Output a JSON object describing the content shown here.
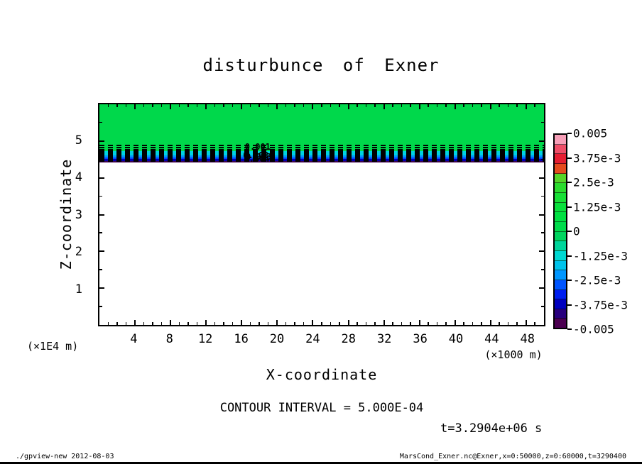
{
  "title": "disturbunce of Exner",
  "axes": {
    "x_label": "X-coordinate",
    "x_unit": "(×1000 m)",
    "y_label": "Z-coordinate",
    "y_unit": "(×1E4 m)"
  },
  "annotations": {
    "contour_interval": "CONTOUR INTERVAL = 5.000E-04",
    "time": "t=3.2904e+06 s"
  },
  "footer": {
    "left": "./gpview-new  2012-08-03",
    "right": "MarsCond_Exner.nc@Exner,x=0:50000,z=0:60000,t=3290400"
  },
  "colorbar": {
    "labels": [
      "0.005",
      "3.75e-3",
      "2.5e-3",
      "1.25e-3",
      "0",
      "-1.25e-3",
      "-2.5e-3",
      "-3.75e-3",
      "-0.005"
    ],
    "segment_colors": [
      "#f79fb8",
      "#ef4e68",
      "#e61e32",
      "#e64b1e",
      "#55d528",
      "#2bdc2e",
      "#18e036",
      "#09e13c",
      "#00e142",
      "#00dc4b",
      "#00d55f",
      "#00d59b",
      "#00d8d2",
      "#00c3eb",
      "#0096ff",
      "#0055ff",
      "#001ef0",
      "#0000be",
      "#28007d",
      "#4b0050"
    ]
  },
  "chart_data": {
    "type": "heatmap",
    "title": "disturbunce of Exner",
    "xlabel": "X-coordinate",
    "x_unit": "×1000 m",
    "ylabel": "Z-coordinate",
    "y_unit": "×1E4 m",
    "xlim": [
      0,
      50
    ],
    "ylim": [
      0,
      6
    ],
    "x_ticks": [
      4,
      8,
      12,
      16,
      20,
      24,
      28,
      32,
      36,
      40,
      44,
      48
    ],
    "y_ticks": [
      1,
      2,
      3,
      4,
      5
    ],
    "contour_interval": 0.0005,
    "colorbar_levels": [
      0.005,
      0.00375,
      0.0025,
      0.00125,
      0,
      -0.00125,
      -0.0025,
      -0.00375,
      -0.005
    ],
    "time_seconds": 3290400,
    "bands": [
      {
        "z_from": 4.72,
        "z_to": 6.0,
        "value": "~0",
        "color": "#00d84b"
      },
      {
        "z_from": 4.62,
        "z_to": 4.72,
        "value": "-0.00125",
        "color": "#00d2e1"
      },
      {
        "z_from": 4.56,
        "z_to": 4.62,
        "value": "-0.002",
        "color": "#0096ff"
      },
      {
        "z_from": 4.51,
        "z_to": 4.56,
        "value": "-0.0025",
        "color": "#0046ff"
      },
      {
        "z_from": 4.46,
        "z_to": 4.51,
        "value": "-0.00375",
        "color": "#0000b4"
      },
      {
        "z_from": 4.42,
        "z_to": 4.46,
        "value": "-0.005",
        "color": "#3f0050"
      },
      {
        "z_from": 0,
        "z_to": 4.42,
        "value": "no data",
        "color": "#ffffff"
      }
    ],
    "contour_lines_z": [
      4.9,
      4.84,
      4.79,
      4.75,
      4.71,
      4.67,
      4.63,
      4.59,
      4.55,
      4.51,
      4.47
    ],
    "contour_labels": [
      {
        "text": "0.001",
        "x": 17.8,
        "z": 4.84
      },
      {
        "text": "0.002",
        "x": 17.6,
        "z": 4.62
      },
      {
        "text": "0.003",
        "x": 17.9,
        "z": 4.57
      },
      {
        "text": "0.004",
        "x": 17.7,
        "z": 4.52
      }
    ]
  }
}
